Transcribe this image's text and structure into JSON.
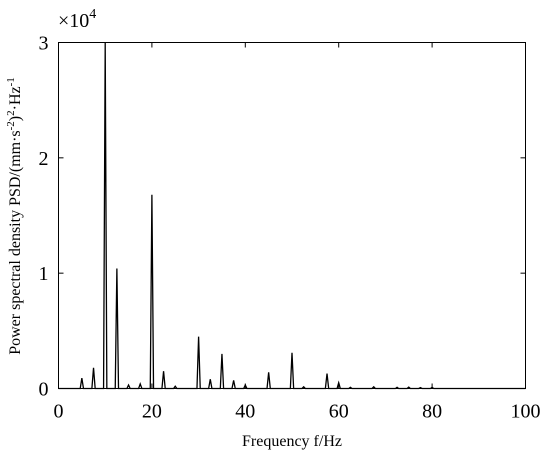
{
  "chart_data": {
    "type": "line",
    "title": "",
    "xlabel": "Frequency f/Hz",
    "ylabel": "Power spectral density PSD/(mm·s",
    "ylabel_exp1": "-2",
    "ylabel_mid": ")",
    "ylabel_exp2": "2",
    "ylabel_unit": "·Hz",
    "ylabel_exp3": "-1",
    "y_multiplier": "×10",
    "y_multiplier_exp": "4",
    "xlim": [
      0,
      100
    ],
    "ylim": [
      0,
      30000
    ],
    "x_ticks": [
      0,
      20,
      40,
      60,
      80,
      100
    ],
    "x_tick_labels": [
      "0",
      "20",
      "40",
      "60",
      "80",
      "100"
    ],
    "y_ticks": [
      0,
      10000,
      20000,
      30000
    ],
    "y_tick_labels": [
      "0",
      "1",
      "2",
      "3"
    ],
    "grid": false,
    "line_color": "#000000",
    "series": [
      {
        "peaks": [
          {
            "f": 5.0,
            "psd": 900
          },
          {
            "f": 7.5,
            "psd": 1800
          },
          {
            "f": 10.0,
            "psd": 30000
          },
          {
            "f": 12.5,
            "psd": 10400
          },
          {
            "f": 15.0,
            "psd": 300
          },
          {
            "f": 17.5,
            "psd": 400
          },
          {
            "f": 20.0,
            "psd": 16800
          },
          {
            "f": 22.5,
            "psd": 1500
          },
          {
            "f": 25.0,
            "psd": 200
          },
          {
            "f": 30.0,
            "psd": 4500
          },
          {
            "f": 32.5,
            "psd": 800
          },
          {
            "f": 35.0,
            "psd": 3000
          },
          {
            "f": 37.5,
            "psd": 700
          },
          {
            "f": 40.0,
            "psd": 300
          },
          {
            "f": 45.0,
            "psd": 1400
          },
          {
            "f": 50.0,
            "psd": 3100
          },
          {
            "f": 52.5,
            "psd": 150
          },
          {
            "f": 57.5,
            "psd": 1300
          },
          {
            "f": 60.0,
            "psd": 500
          },
          {
            "f": 62.5,
            "psd": 100
          },
          {
            "f": 67.5,
            "psd": 150
          },
          {
            "f": 72.5,
            "psd": 100
          },
          {
            "f": 75.0,
            "psd": 120
          },
          {
            "f": 77.5,
            "psd": 80
          },
          {
            "f": 80.0,
            "psd": 100
          }
        ]
      }
    ]
  }
}
